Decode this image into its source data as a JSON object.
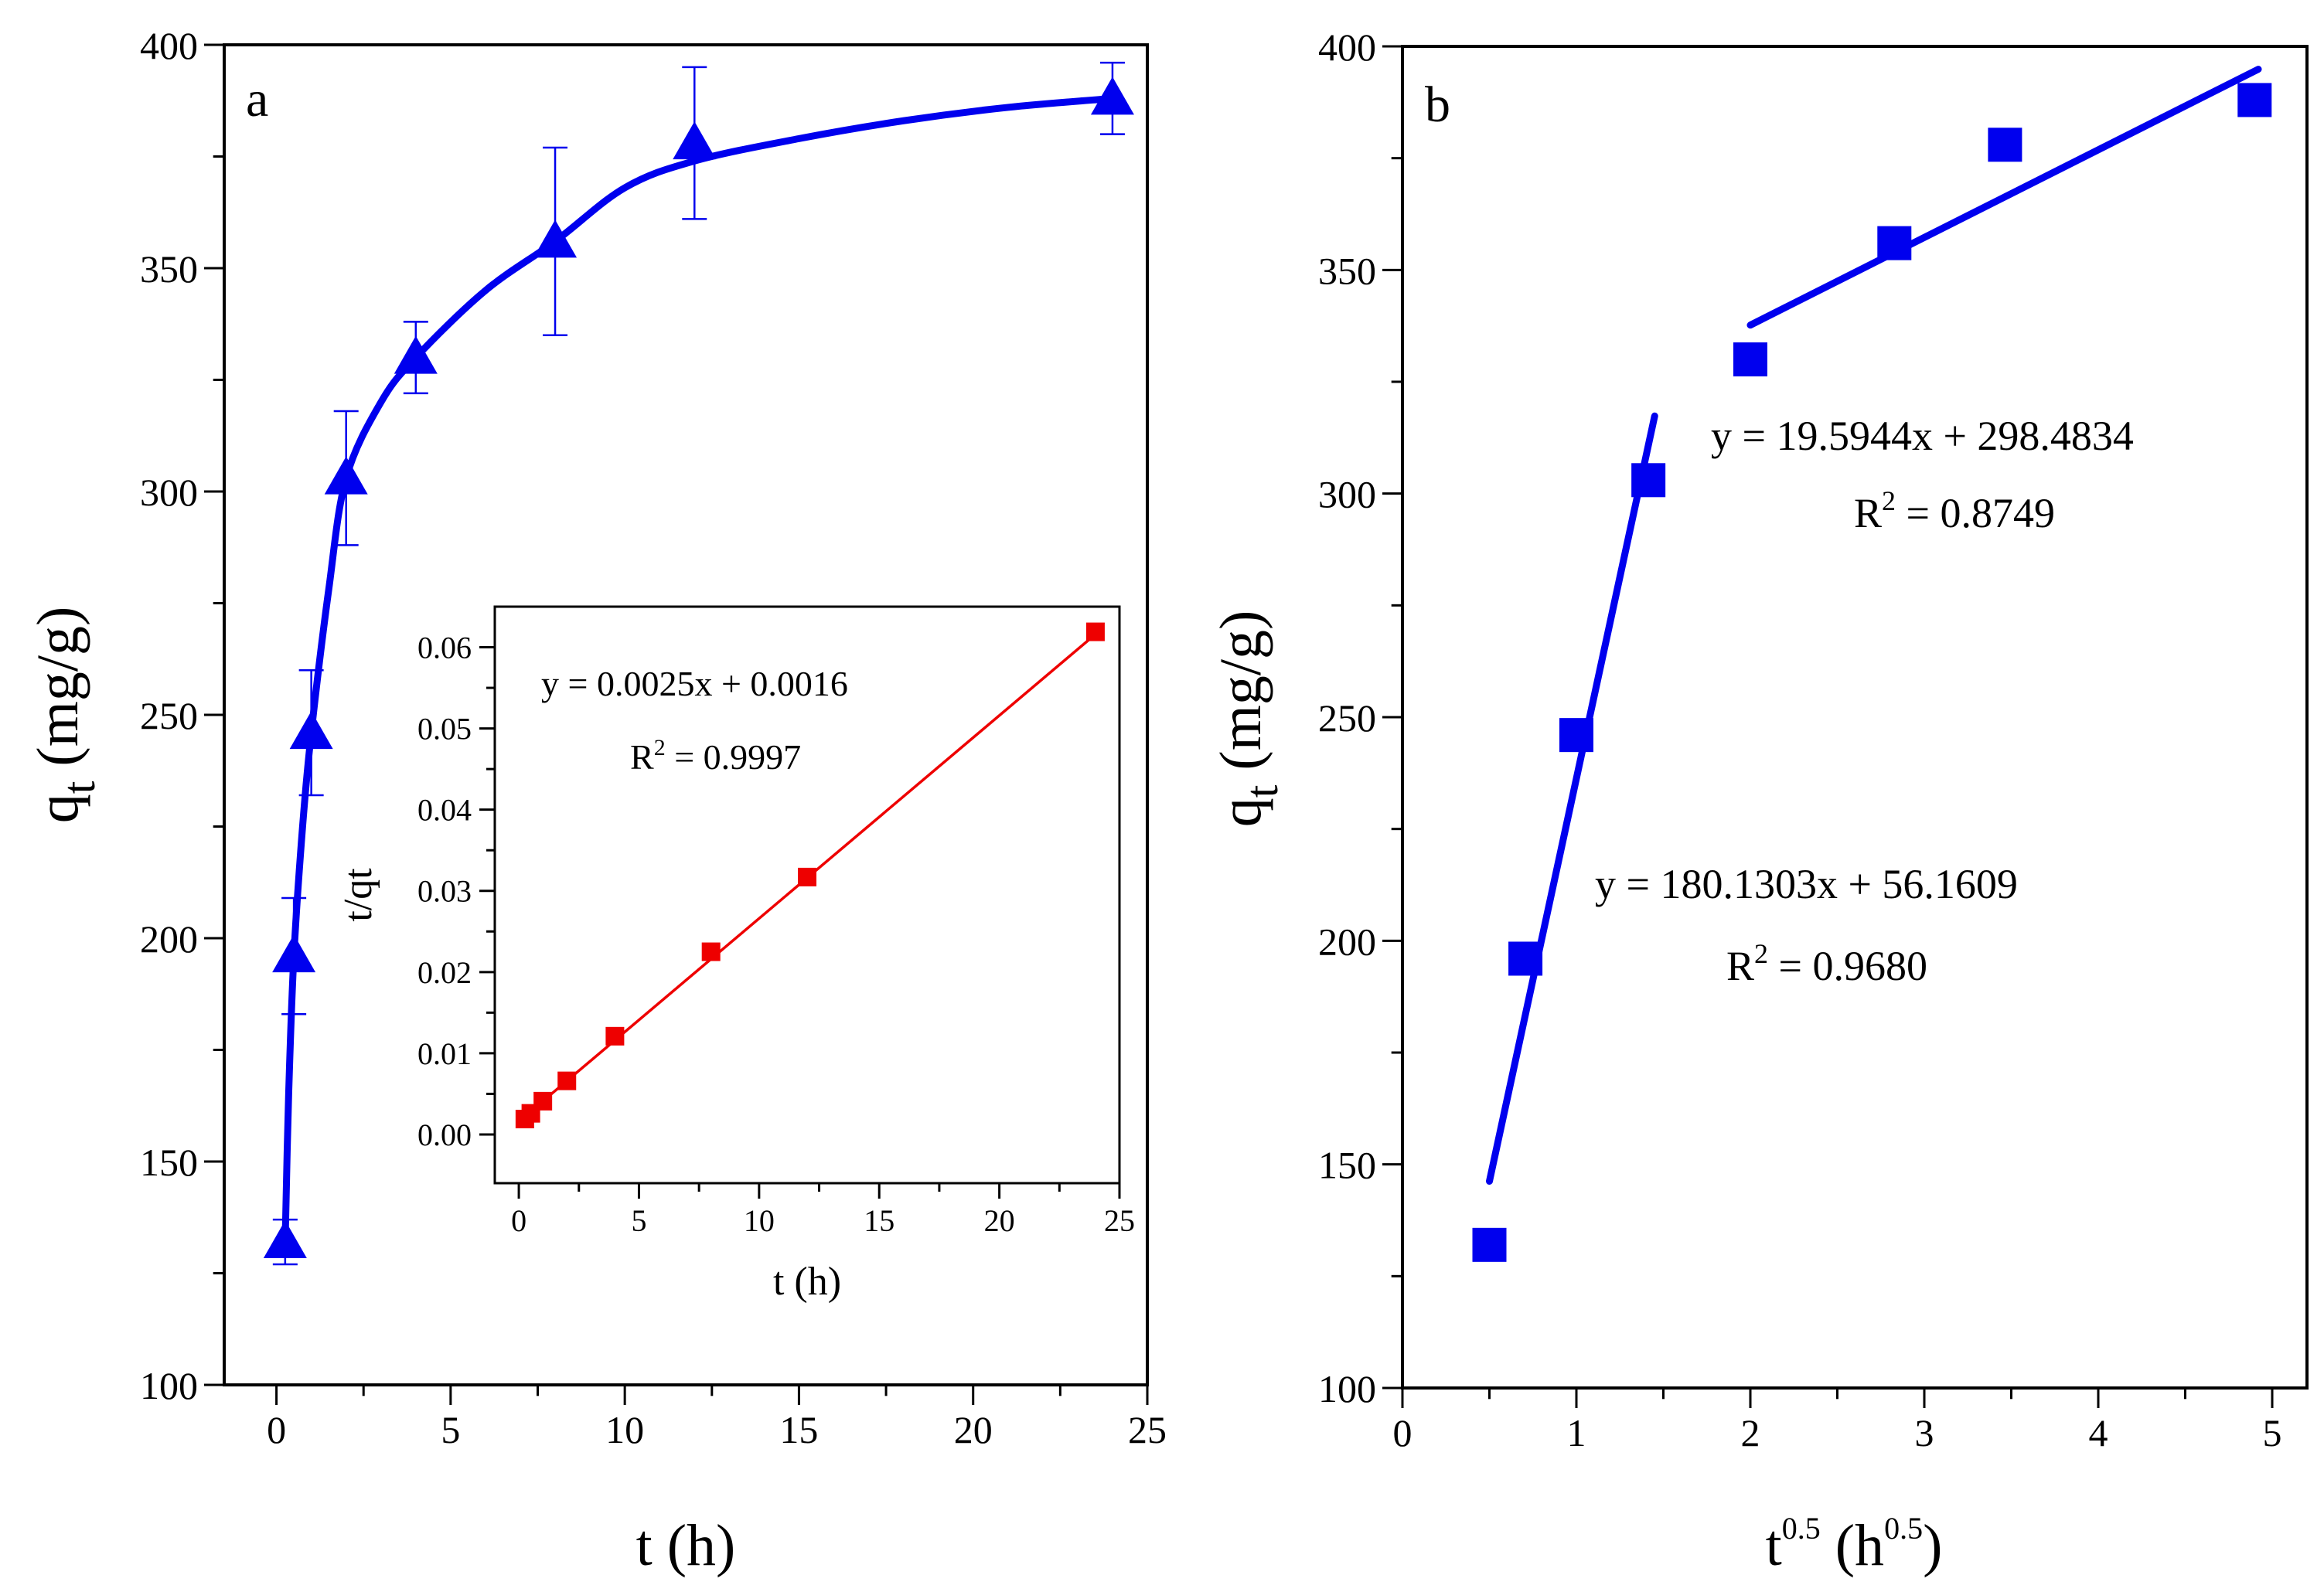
{
  "chart_data": [
    {
      "id": "a",
      "type": "line",
      "panel_label": "a",
      "xlabel": "t (h)",
      "ylabel": {
        "main": "q",
        "sub": "t",
        "rest": " (mg/g)"
      },
      "xlim": [
        -1.5,
        25
      ],
      "ylim": [
        100,
        400
      ],
      "xticks": [
        0,
        5,
        10,
        15,
        20,
        25
      ],
      "yticks": [
        100,
        150,
        200,
        250,
        300,
        350,
        400
      ],
      "series": [
        {
          "name": "qt",
          "color": "#0000ee",
          "marker": "triangle",
          "points": [
            {
              "x": 0.25,
              "y": 132,
              "err": 5
            },
            {
              "x": 0.5,
              "y": 196,
              "err": 13
            },
            {
              "x": 1,
              "y": 246,
              "err": 14
            },
            {
              "x": 2,
              "y": 303,
              "err": 15
            },
            {
              "x": 4,
              "y": 330,
              "err": 8
            },
            {
              "x": 8,
              "y": 356,
              "err": 21
            },
            {
              "x": 12,
              "y": 378,
              "err": 17
            },
            {
              "x": 24,
              "y": 388,
              "err": 8
            }
          ],
          "fit_curve": [
            [
              0.25,
              132
            ],
            [
              0.35,
              165
            ],
            [
              0.5,
              196
            ],
            [
              0.75,
              225
            ],
            [
              1,
              246
            ],
            [
              1.5,
              278
            ],
            [
              2,
              303
            ],
            [
              3,
              320
            ],
            [
              4,
              330
            ],
            [
              6,
              345
            ],
            [
              8,
              356
            ],
            [
              10,
              368
            ],
            [
              12,
              374
            ],
            [
              15,
              379
            ],
            [
              18,
              383
            ],
            [
              21,
              386
            ],
            [
              24,
              388
            ]
          ]
        }
      ]
    },
    {
      "id": "a-inset",
      "type": "scatter",
      "xlabel": "t (h)",
      "ylabel": "t/qt",
      "xlim": [
        -1,
        25
      ],
      "ylim": [
        -0.006,
        0.065
      ],
      "xticks": [
        0,
        5,
        10,
        15,
        20,
        25
      ],
      "yticks": [
        0.0,
        0.01,
        0.02,
        0.03,
        0.04,
        0.05,
        0.06
      ],
      "ytick_labels": [
        "0.00",
        "0.01",
        "0.02",
        "0.03",
        "0.04",
        "0.05",
        "0.06"
      ],
      "series": [
        {
          "name": "t/qt",
          "color": "#ee0000",
          "marker": "square",
          "x": [
            0.25,
            0.5,
            1,
            2,
            4,
            8,
            12,
            24
          ],
          "y": [
            0.0019,
            0.0026,
            0.0041,
            0.0066,
            0.0121,
            0.0225,
            0.0317,
            0.0619
          ],
          "fit": {
            "slope": 0.0025,
            "intercept": 0.0016,
            "x_range": [
              0.25,
              24
            ]
          }
        }
      ],
      "annotations": [
        {
          "text": "y = 0.0025x + 0.0016"
        },
        {
          "text_pre": "R",
          "sup": "2",
          "text_post": " = 0.9997"
        }
      ]
    },
    {
      "id": "b",
      "type": "scatter",
      "panel_label": "b",
      "xlabel": {
        "t": "t",
        "t_sup": "0.5",
        "mid": " (h",
        "h_sup": "0.5",
        "end": ")"
      },
      "ylabel": {
        "main": "q",
        "sub": "t",
        "rest": " (mg/g)"
      },
      "xlim": [
        0,
        5.2
      ],
      "ylim": [
        100,
        400
      ],
      "xticks": [
        0,
        1,
        2,
        3,
        4,
        5
      ],
      "yticks": [
        100,
        150,
        200,
        250,
        300,
        350,
        400
      ],
      "series": [
        {
          "name": "qt",
          "color": "#0000ee",
          "marker": "square",
          "x": [
            0.5,
            0.707,
            1,
            1.414,
            2,
            2.828,
            3.464,
            4.899
          ],
          "y": [
            132,
            196,
            246,
            303,
            330,
            356,
            378,
            388
          ]
        }
      ],
      "fits": [
        {
          "slope": 180.1303,
          "intercept": 56.1609,
          "x_range": [
            0.5,
            1.45
          ]
        },
        {
          "slope": 19.5944,
          "intercept": 298.4834,
          "x_range": [
            2,
            4.92
          ]
        }
      ],
      "annotations": [
        {
          "text": "y = 19.5944x + 298.4834"
        },
        {
          "text_pre": "R",
          "sup": "2",
          "text_post": " = 0.8749"
        },
        {
          "text": "y = 180.1303x + 56.1609"
        },
        {
          "text_pre": "R",
          "sup": "2",
          "text_post": " = 0.9680"
        }
      ]
    }
  ]
}
